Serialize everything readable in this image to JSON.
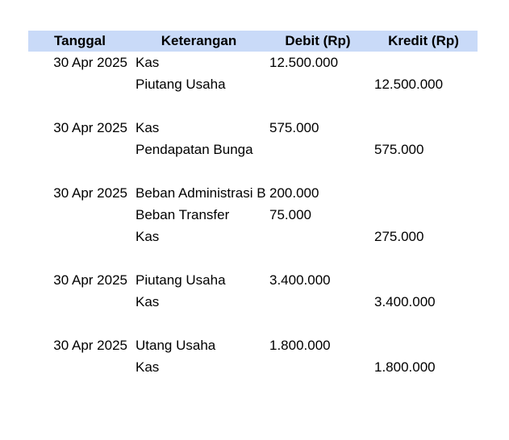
{
  "journal": {
    "header_bg": "#c9daf8",
    "text_color": "#000000",
    "header": {
      "tanggal": "Tanggal",
      "keterangan": "Keterangan",
      "debit": "Debit (Rp)",
      "kredit": "Kredit (Rp)"
    },
    "rows": [
      {
        "tanggal": "30 Apr 2025",
        "keterangan": "Kas",
        "debit": "12.500.000",
        "kredit": ""
      },
      {
        "tanggal": "",
        "keterangan": "Piutang Usaha",
        "debit": "",
        "kredit": "12.500.000"
      },
      {
        "tanggal": "",
        "keterangan": "",
        "debit": "",
        "kredit": ""
      },
      {
        "tanggal": "30 Apr 2025",
        "keterangan": "Kas",
        "debit": "575.000",
        "kredit": ""
      },
      {
        "tanggal": "",
        "keterangan": "Pendapatan Bunga",
        "debit": "",
        "kredit": "575.000"
      },
      {
        "tanggal": "",
        "keterangan": "",
        "debit": "",
        "kredit": ""
      },
      {
        "tanggal": "30 Apr 2025",
        "keterangan": "Beban Administrasi B",
        "debit": "200.000",
        "kredit": ""
      },
      {
        "tanggal": "",
        "keterangan": "Beban Transfer",
        "debit": "75.000",
        "kredit": ""
      },
      {
        "tanggal": "",
        "keterangan": "Kas",
        "debit": "",
        "kredit": "275.000"
      },
      {
        "tanggal": "",
        "keterangan": "",
        "debit": "",
        "kredit": ""
      },
      {
        "tanggal": "30 Apr 2025",
        "keterangan": "Piutang Usaha",
        "debit": "3.400.000",
        "kredit": ""
      },
      {
        "tanggal": "",
        "keterangan": "Kas",
        "debit": "",
        "kredit": "3.400.000"
      },
      {
        "tanggal": "",
        "keterangan": "",
        "debit": "",
        "kredit": ""
      },
      {
        "tanggal": "30 Apr 2025",
        "keterangan": "Utang Usaha",
        "debit": "1.800.000",
        "kredit": ""
      },
      {
        "tanggal": "",
        "keterangan": "Kas",
        "debit": "",
        "kredit": "1.800.000"
      }
    ]
  }
}
